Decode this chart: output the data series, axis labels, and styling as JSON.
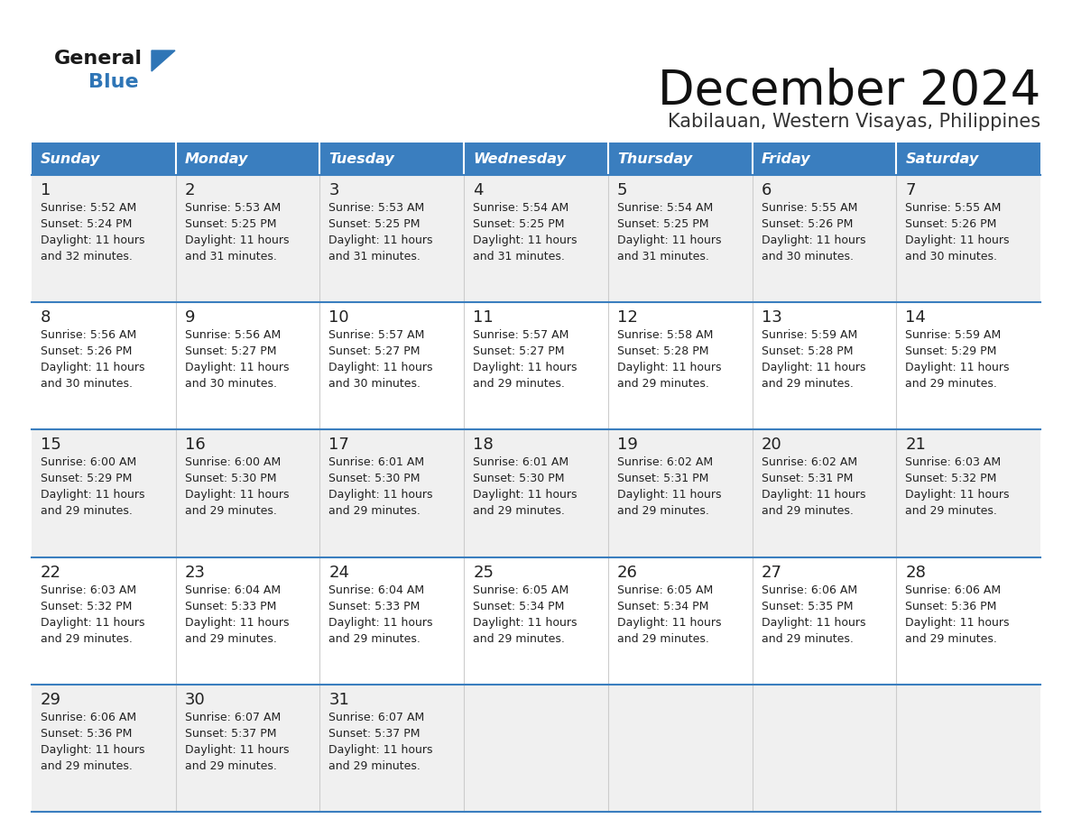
{
  "title": "December 2024",
  "subtitle": "Kabilauan, Western Visayas, Philippines",
  "header_bg": "#3a7ebf",
  "header_text_color": "#ffffff",
  "cell_bg_odd": "#f0f0f0",
  "cell_bg_even": "#ffffff",
  "border_color": "#3a7ebf",
  "col_sep_color": "#cccccc",
  "text_color": "#222222",
  "logo_black": "#1a1a1a",
  "logo_blue": "#2e75b6",
  "days_of_week": [
    "Sunday",
    "Monday",
    "Tuesday",
    "Wednesday",
    "Thursday",
    "Friday",
    "Saturday"
  ],
  "weeks": [
    [
      {
        "day": 1,
        "sunrise": "5:52 AM",
        "sunset": "5:24 PM",
        "daylight": "11 hours",
        "daylight2": "and 32 minutes."
      },
      {
        "day": 2,
        "sunrise": "5:53 AM",
        "sunset": "5:25 PM",
        "daylight": "11 hours",
        "daylight2": "and 31 minutes."
      },
      {
        "day": 3,
        "sunrise": "5:53 AM",
        "sunset": "5:25 PM",
        "daylight": "11 hours",
        "daylight2": "and 31 minutes."
      },
      {
        "day": 4,
        "sunrise": "5:54 AM",
        "sunset": "5:25 PM",
        "daylight": "11 hours",
        "daylight2": "and 31 minutes."
      },
      {
        "day": 5,
        "sunrise": "5:54 AM",
        "sunset": "5:25 PM",
        "daylight": "11 hours",
        "daylight2": "and 31 minutes."
      },
      {
        "day": 6,
        "sunrise": "5:55 AM",
        "sunset": "5:26 PM",
        "daylight": "11 hours",
        "daylight2": "and 30 minutes."
      },
      {
        "day": 7,
        "sunrise": "5:55 AM",
        "sunset": "5:26 PM",
        "daylight": "11 hours",
        "daylight2": "and 30 minutes."
      }
    ],
    [
      {
        "day": 8,
        "sunrise": "5:56 AM",
        "sunset": "5:26 PM",
        "daylight": "11 hours",
        "daylight2": "and 30 minutes."
      },
      {
        "day": 9,
        "sunrise": "5:56 AM",
        "sunset": "5:27 PM",
        "daylight": "11 hours",
        "daylight2": "and 30 minutes."
      },
      {
        "day": 10,
        "sunrise": "5:57 AM",
        "sunset": "5:27 PM",
        "daylight": "11 hours",
        "daylight2": "and 30 minutes."
      },
      {
        "day": 11,
        "sunrise": "5:57 AM",
        "sunset": "5:27 PM",
        "daylight": "11 hours",
        "daylight2": "and 29 minutes."
      },
      {
        "day": 12,
        "sunrise": "5:58 AM",
        "sunset": "5:28 PM",
        "daylight": "11 hours",
        "daylight2": "and 29 minutes."
      },
      {
        "day": 13,
        "sunrise": "5:59 AM",
        "sunset": "5:28 PM",
        "daylight": "11 hours",
        "daylight2": "and 29 minutes."
      },
      {
        "day": 14,
        "sunrise": "5:59 AM",
        "sunset": "5:29 PM",
        "daylight": "11 hours",
        "daylight2": "and 29 minutes."
      }
    ],
    [
      {
        "day": 15,
        "sunrise": "6:00 AM",
        "sunset": "5:29 PM",
        "daylight": "11 hours",
        "daylight2": "and 29 minutes."
      },
      {
        "day": 16,
        "sunrise": "6:00 AM",
        "sunset": "5:30 PM",
        "daylight": "11 hours",
        "daylight2": "and 29 minutes."
      },
      {
        "day": 17,
        "sunrise": "6:01 AM",
        "sunset": "5:30 PM",
        "daylight": "11 hours",
        "daylight2": "and 29 minutes."
      },
      {
        "day": 18,
        "sunrise": "6:01 AM",
        "sunset": "5:30 PM",
        "daylight": "11 hours",
        "daylight2": "and 29 minutes."
      },
      {
        "day": 19,
        "sunrise": "6:02 AM",
        "sunset": "5:31 PM",
        "daylight": "11 hours",
        "daylight2": "and 29 minutes."
      },
      {
        "day": 20,
        "sunrise": "6:02 AM",
        "sunset": "5:31 PM",
        "daylight": "11 hours",
        "daylight2": "and 29 minutes."
      },
      {
        "day": 21,
        "sunrise": "6:03 AM",
        "sunset": "5:32 PM",
        "daylight": "11 hours",
        "daylight2": "and 29 minutes."
      }
    ],
    [
      {
        "day": 22,
        "sunrise": "6:03 AM",
        "sunset": "5:32 PM",
        "daylight": "11 hours",
        "daylight2": "and 29 minutes."
      },
      {
        "day": 23,
        "sunrise": "6:04 AM",
        "sunset": "5:33 PM",
        "daylight": "11 hours",
        "daylight2": "and 29 minutes."
      },
      {
        "day": 24,
        "sunrise": "6:04 AM",
        "sunset": "5:33 PM",
        "daylight": "11 hours",
        "daylight2": "and 29 minutes."
      },
      {
        "day": 25,
        "sunrise": "6:05 AM",
        "sunset": "5:34 PM",
        "daylight": "11 hours",
        "daylight2": "and 29 minutes."
      },
      {
        "day": 26,
        "sunrise": "6:05 AM",
        "sunset": "5:34 PM",
        "daylight": "11 hours",
        "daylight2": "and 29 minutes."
      },
      {
        "day": 27,
        "sunrise": "6:06 AM",
        "sunset": "5:35 PM",
        "daylight": "11 hours",
        "daylight2": "and 29 minutes."
      },
      {
        "day": 28,
        "sunrise": "6:06 AM",
        "sunset": "5:36 PM",
        "daylight": "11 hours",
        "daylight2": "and 29 minutes."
      }
    ],
    [
      {
        "day": 29,
        "sunrise": "6:06 AM",
        "sunset": "5:36 PM",
        "daylight": "11 hours",
        "daylight2": "and 29 minutes."
      },
      {
        "day": 30,
        "sunrise": "6:07 AM",
        "sunset": "5:37 PM",
        "daylight": "11 hours",
        "daylight2": "and 29 minutes."
      },
      {
        "day": 31,
        "sunrise": "6:07 AM",
        "sunset": "5:37 PM",
        "daylight": "11 hours",
        "daylight2": "and 29 minutes."
      },
      null,
      null,
      null,
      null
    ]
  ]
}
